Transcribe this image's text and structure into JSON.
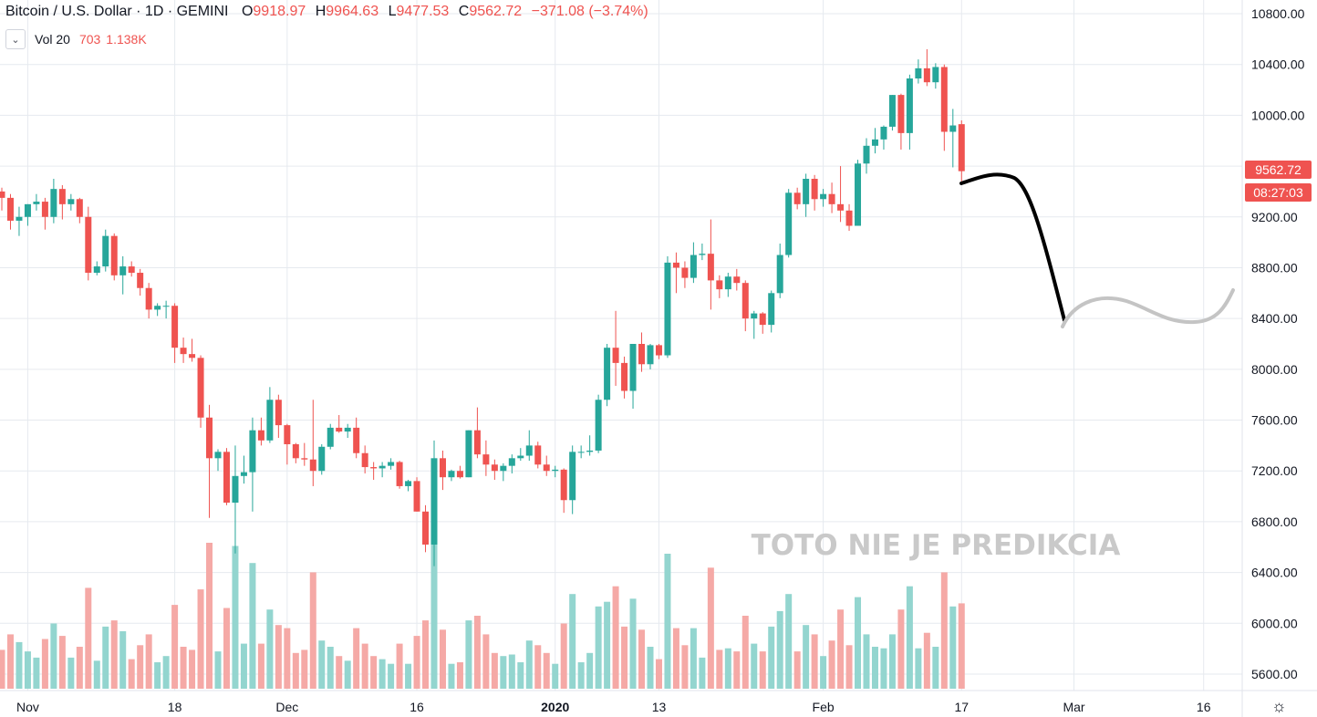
{
  "header": {
    "symbol": "Bitcoin / U.S. Dollar · 1D · GEMINI",
    "open_key": "O",
    "open": "9918.97",
    "high_key": "H",
    "high": "9964.63",
    "low_key": "L",
    "low": "9477.53",
    "close_key": "C",
    "close": "9562.72",
    "change": "−371.08 (−3.74%)"
  },
  "volume_indicator": {
    "label": "Vol 20",
    "value1": "703",
    "value2": "1.138K",
    "collapse_icon": "chevron-down-icon"
  },
  "last_price": {
    "price": "9562.72",
    "countdown": "08:27:03"
  },
  "watermark": "TOTO NIE JE PREDIKCIA",
  "settings_icon": "gear-icon",
  "colors": {
    "up": "#26a69a",
    "down": "#ef5350",
    "up_vol": "#93d5cf",
    "down_vol": "#f5a9a6",
    "grid": "#e6eaef",
    "projection": "#000000",
    "projection_alt": "#c4c4c4"
  },
  "chart_data": {
    "type": "candlestick",
    "y_ticks": [
      "10800.00",
      "10400.00",
      "10000.00",
      "9600.00",
      "9200.00",
      "8800.00",
      "8400.00",
      "8000.00",
      "7600.00",
      "7200.00",
      "6800.00",
      "6400.00",
      "6000.00",
      "5600.00"
    ],
    "x_ticks": [
      "Nov",
      "18",
      "Dec",
      "16",
      "2020",
      "13",
      "Feb",
      "17",
      "Mar",
      "16"
    ],
    "ylim": [
      5480,
      10900
    ],
    "candles": [
      [
        "10-29",
        9400,
        9430,
        9250,
        9350
      ],
      [
        "10-30",
        9350,
        9380,
        9100,
        9170
      ],
      [
        "10-31",
        9170,
        9280,
        9050,
        9200
      ],
      [
        "11-01",
        9200,
        9300,
        9130,
        9300
      ],
      [
        "11-02",
        9300,
        9380,
        9250,
        9320
      ],
      [
        "11-03",
        9320,
        9350,
        9100,
        9200
      ],
      [
        "11-04",
        9200,
        9500,
        9150,
        9420
      ],
      [
        "11-05",
        9420,
        9450,
        9180,
        9300
      ],
      [
        "11-06",
        9300,
        9380,
        9250,
        9340
      ],
      [
        "11-07",
        9340,
        9350,
        9150,
        9200
      ],
      [
        "11-08",
        9200,
        9280,
        8700,
        8760
      ],
      [
        "11-09",
        8760,
        8850,
        8740,
        8810
      ],
      [
        "11-10",
        8810,
        9100,
        8770,
        9050
      ],
      [
        "11-11",
        9050,
        9070,
        8700,
        8740
      ],
      [
        "11-12",
        8740,
        8890,
        8590,
        8810
      ],
      [
        "11-13",
        8810,
        8850,
        8730,
        8760
      ],
      [
        "11-14",
        8760,
        8790,
        8580,
        8640
      ],
      [
        "11-15",
        8640,
        8680,
        8400,
        8470
      ],
      [
        "11-16",
        8470,
        8520,
        8420,
        8500
      ],
      [
        "11-17",
        8500,
        8540,
        8400,
        8500
      ],
      [
        "11-18",
        8500,
        8520,
        8050,
        8170
      ],
      [
        "11-19",
        8170,
        8250,
        8050,
        8120
      ],
      [
        "11-20",
        8120,
        8240,
        8060,
        8090
      ],
      [
        "11-21",
        8090,
        8110,
        7540,
        7620
      ],
      [
        "11-22",
        7620,
        7720,
        6830,
        7300
      ],
      [
        "11-23",
        7300,
        7370,
        7200,
        7350
      ],
      [
        "11-24",
        7350,
        7380,
        6930,
        6950
      ],
      [
        "11-25",
        6950,
        7400,
        6550,
        7160
      ],
      [
        "11-26",
        7160,
        7320,
        7100,
        7190
      ],
      [
        "11-27",
        7190,
        7620,
        6880,
        7520
      ],
      [
        "11-28",
        7520,
        7620,
        7400,
        7440
      ],
      [
        "11-29",
        7440,
        7860,
        7420,
        7760
      ],
      [
        "11-30",
        7760,
        7800,
        7460,
        7560
      ],
      [
        "12-01",
        7560,
        7570,
        7250,
        7410
      ],
      [
        "12-02",
        7410,
        7420,
        7260,
        7300
      ],
      [
        "12-03",
        7300,
        7420,
        7240,
        7290
      ],
      [
        "12-04",
        7290,
        7760,
        7080,
        7200
      ],
      [
        "12-05",
        7200,
        7410,
        7170,
        7390
      ],
      [
        "12-06",
        7390,
        7570,
        7370,
        7540
      ],
      [
        "12-07",
        7540,
        7640,
        7500,
        7510
      ],
      [
        "12-08",
        7510,
        7570,
        7460,
        7540
      ],
      [
        "12-09",
        7540,
        7620,
        7300,
        7340
      ],
      [
        "12-10",
        7340,
        7400,
        7180,
        7230
      ],
      [
        "12-11",
        7230,
        7270,
        7130,
        7220
      ],
      [
        "12-12",
        7220,
        7270,
        7150,
        7240
      ],
      [
        "12-13",
        7240,
        7300,
        7210,
        7270
      ],
      [
        "12-14",
        7270,
        7280,
        7060,
        7080
      ],
      [
        "12-15",
        7080,
        7130,
        7040,
        7120
      ],
      [
        "12-16",
        7120,
        7150,
        6880,
        6880
      ],
      [
        "12-17",
        6880,
        6930,
        6560,
        6620
      ],
      [
        "12-18",
        6620,
        7440,
        6450,
        7300
      ],
      [
        "12-19",
        7300,
        7360,
        7050,
        7150
      ],
      [
        "12-20",
        7150,
        7210,
        7120,
        7200
      ],
      [
        "12-21",
        7200,
        7240,
        7140,
        7150
      ],
      [
        "12-22",
        7150,
        7520,
        7150,
        7520
      ],
      [
        "12-23",
        7520,
        7700,
        7300,
        7330
      ],
      [
        "12-24",
        7330,
        7440,
        7160,
        7250
      ],
      [
        "12-25",
        7250,
        7290,
        7130,
        7200
      ],
      [
        "12-26",
        7200,
        7260,
        7120,
        7240
      ],
      [
        "12-27",
        7240,
        7330,
        7180,
        7300
      ],
      [
        "12-28",
        7300,
        7380,
        7280,
        7320
      ],
      [
        "12-29",
        7320,
        7520,
        7280,
        7400
      ],
      [
        "12-30",
        7400,
        7430,
        7220,
        7250
      ],
      [
        "12-31",
        7250,
        7320,
        7160,
        7200
      ],
      [
        "01-01",
        7200,
        7240,
        7150,
        7210
      ],
      [
        "01-02",
        7210,
        7220,
        6870,
        6970
      ],
      [
        "01-03",
        6970,
        7400,
        6860,
        7350
      ],
      [
        "01-04",
        7350,
        7400,
        7300,
        7350
      ],
      [
        "01-05",
        7350,
        7480,
        7320,
        7360
      ],
      [
        "01-06",
        7360,
        7800,
        7340,
        7760
      ],
      [
        "01-07",
        7760,
        8200,
        7710,
        8170
      ],
      [
        "01-08",
        8170,
        8460,
        7870,
        8050
      ],
      [
        "01-09",
        8050,
        8100,
        7770,
        7830
      ],
      [
        "01-10",
        7830,
        8200,
        7690,
        8200
      ],
      [
        "01-11",
        8200,
        8290,
        7980,
        8040
      ],
      [
        "01-12",
        8040,
        8200,
        8000,
        8190
      ],
      [
        "01-13",
        8190,
        8200,
        8080,
        8110
      ],
      [
        "01-14",
        8110,
        8890,
        8090,
        8840
      ],
      [
        "01-15",
        8840,
        8920,
        8600,
        8800
      ],
      [
        "01-16",
        8800,
        8850,
        8640,
        8720
      ],
      [
        "01-17",
        8720,
        9000,
        8680,
        8900
      ],
      [
        "01-18",
        8900,
        8990,
        8860,
        8910
      ],
      [
        "01-19",
        8910,
        9180,
        8470,
        8700
      ],
      [
        "01-20",
        8700,
        8740,
        8560,
        8630
      ],
      [
        "01-21",
        8630,
        8760,
        8570,
        8730
      ],
      [
        "01-22",
        8730,
        8790,
        8620,
        8680
      ],
      [
        "01-23",
        8680,
        8700,
        8300,
        8400
      ],
      [
        "01-24",
        8400,
        8460,
        8240,
        8440
      ],
      [
        "01-25",
        8440,
        8450,
        8280,
        8350
      ],
      [
        "01-26",
        8350,
        8620,
        8290,
        8600
      ],
      [
        "01-27",
        8600,
        8990,
        8560,
        8900
      ],
      [
        "01-28",
        8900,
        9420,
        8880,
        9390
      ],
      [
        "01-29",
        9390,
        9430,
        9260,
        9300
      ],
      [
        "01-30",
        9300,
        9540,
        9200,
        9500
      ],
      [
        "01-31",
        9500,
        9530,
        9250,
        9340
      ],
      [
        "02-01",
        9340,
        9420,
        9280,
        9380
      ],
      [
        "02-02",
        9380,
        9470,
        9230,
        9300
      ],
      [
        "02-03",
        9300,
        9600,
        9160,
        9250
      ],
      [
        "02-04",
        9250,
        9300,
        9090,
        9130
      ],
      [
        "02-05",
        9130,
        9650,
        9130,
        9620
      ],
      [
        "02-06",
        9620,
        9820,
        9540,
        9760
      ],
      [
        "02-07",
        9760,
        9900,
        9700,
        9810
      ],
      [
        "02-08",
        9810,
        9920,
        9730,
        9910
      ],
      [
        "02-09",
        9910,
        10160,
        9880,
        10160
      ],
      [
        "02-10",
        10160,
        10170,
        9730,
        9860
      ],
      [
        "02-11",
        9860,
        10320,
        9730,
        10290
      ],
      [
        "02-12",
        10290,
        10440,
        10250,
        10370
      ],
      [
        "02-13",
        10370,
        10520,
        10230,
        10260
      ],
      [
        "02-14",
        10260,
        10410,
        10210,
        10380
      ],
      [
        "02-15",
        10380,
        10400,
        9720,
        9870
      ],
      [
        "02-16",
        9870,
        10050,
        9590,
        9920
      ],
      [
        "02-17",
        9930,
        9960,
        9480,
        9560
      ]
    ],
    "volume_ylim": [
      0,
      1500
    ]
  }
}
